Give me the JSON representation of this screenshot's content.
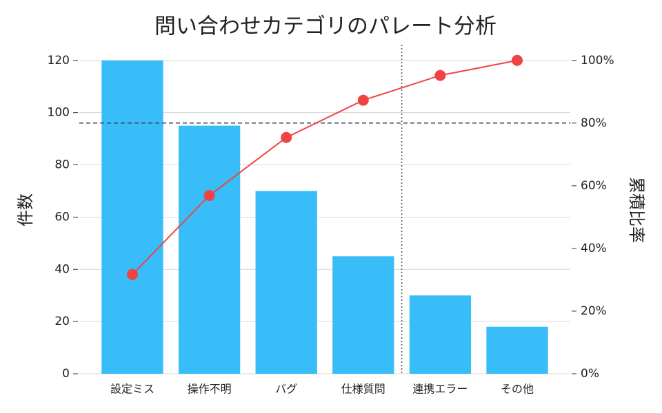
{
  "chart_data": {
    "type": "pareto",
    "title": "問い合わせカテゴリのパレート分析",
    "y_label": "件数",
    "y2_label": "累積比率",
    "categories": [
      "設定ミス",
      "操作不明",
      "バグ",
      "仕様質問",
      "連携エラー",
      "その他"
    ],
    "series": [
      {
        "type": "bar",
        "color": "#38bdf8",
        "values": [
          120,
          95,
          70,
          45,
          30,
          18
        ]
      },
      {
        "type": "line",
        "color": "#ef4444",
        "axis": "y2",
        "values": [
          31.7,
          56.9,
          75.4,
          87.3,
          95.2,
          100
        ]
      }
    ],
    "ylim": [
      0,
      126
    ],
    "yticks": [
      0,
      20,
      40,
      60,
      80,
      100,
      120
    ],
    "y2lim": [
      0,
      105
    ],
    "y2ticks": [
      {
        "value": 0,
        "label": "0%"
      },
      {
        "value": 20,
        "label": "20%"
      },
      {
        "value": 40,
        "label": "40%"
      },
      {
        "value": 60,
        "label": "60%"
      },
      {
        "value": 80,
        "label": "80%"
      },
      {
        "value": 100,
        "label": "100%"
      }
    ],
    "reference_line": {
      "axis": "y2",
      "value": 80,
      "color": "#334155"
    },
    "grid": true
  }
}
